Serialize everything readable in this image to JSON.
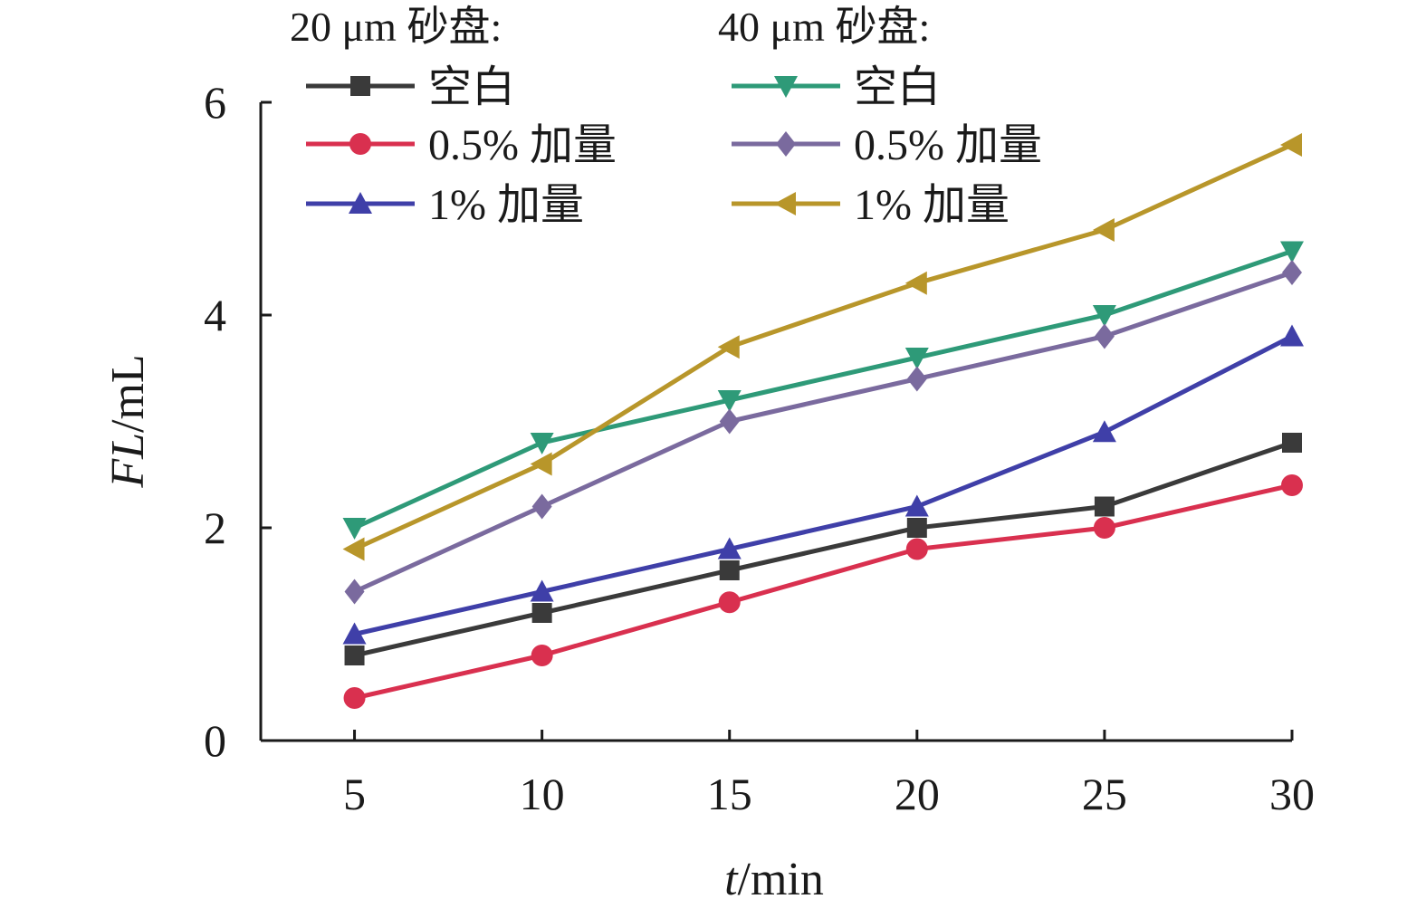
{
  "chart_data": {
    "type": "line",
    "xlabel_italic": "t",
    "xlabel_unit": "/min",
    "ylabel_italic": "FL",
    "ylabel_unit": "/mL",
    "x": [
      5,
      10,
      15,
      20,
      25,
      30
    ],
    "xlim": [
      2.5,
      30
    ],
    "ylim": [
      0,
      6
    ],
    "x_ticks": [
      "5",
      "10",
      "15",
      "20",
      "25",
      "30"
    ],
    "y_ticks": [
      "0",
      "2",
      "4",
      "6"
    ],
    "grid": false,
    "legend_position": "top",
    "legend_groups": [
      "20 μm 砂盘:",
      "40 μm 砂盘:"
    ],
    "series": [
      {
        "name": "空白",
        "group": 0,
        "color": "#3a3a3a",
        "marker": "square",
        "values": [
          0.8,
          1.2,
          1.6,
          2.0,
          2.2,
          2.8
        ]
      },
      {
        "name": "0.5% 加量",
        "group": 0,
        "color": "#d9304f",
        "marker": "circle",
        "values": [
          0.4,
          0.8,
          1.3,
          1.8,
          2.0,
          2.4
        ]
      },
      {
        "name": "1% 加量",
        "group": 0,
        "color": "#3f3fa8",
        "marker": "triangle-up",
        "values": [
          1.0,
          1.4,
          1.8,
          2.2,
          2.9,
          3.8
        ]
      },
      {
        "name": "空白",
        "group": 1,
        "color": "#2e9a78",
        "marker": "triangle-down",
        "values": [
          2.0,
          2.8,
          3.2,
          3.6,
          4.0,
          4.6
        ]
      },
      {
        "name": "0.5% 加量",
        "group": 1,
        "color": "#7a6a9e",
        "marker": "diamond",
        "values": [
          1.4,
          2.2,
          3.0,
          3.4,
          3.8,
          4.4
        ]
      },
      {
        "name": "1% 加量",
        "group": 1,
        "color": "#b8962a",
        "marker": "triangle-left",
        "values": [
          1.8,
          2.6,
          3.7,
          4.3,
          4.8,
          5.6
        ]
      }
    ]
  }
}
